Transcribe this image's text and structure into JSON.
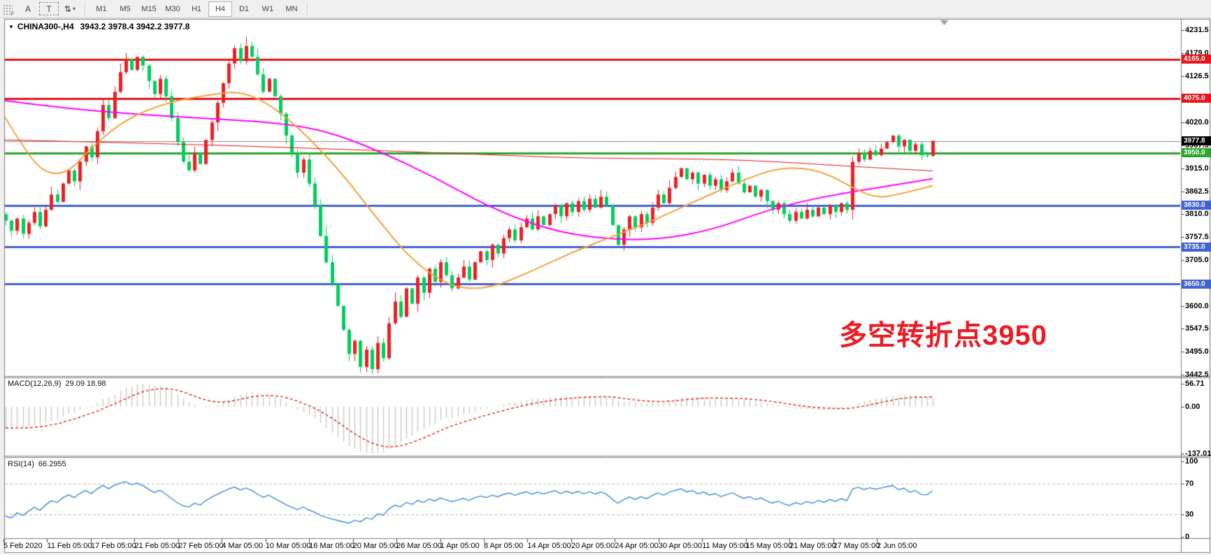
{
  "toolbar": {
    "button_a": "A",
    "button_t": "T",
    "cursor_glyph": "⇅",
    "cursor_caret": "▾",
    "timeframes": [
      "M1",
      "M5",
      "M15",
      "M30",
      "H1",
      "H4",
      "D1",
      "W1",
      "MN"
    ],
    "active_timeframe": "H4"
  },
  "chart": {
    "symbol_title": "CHINA300-,H4",
    "ohlc_text": "3943.2 3978.4 3942.2 3977.8",
    "dropdown_glyph": "▼",
    "annotation": {
      "text": "多空转折点3950",
      "color": "#ea1c24"
    },
    "price_ticks": [
      4231.5,
      4179.0,
      4126.5,
      4072.5,
      4020.0,
      3967.5,
      3915.0,
      3862.5,
      3810.0,
      3757.5,
      3705.0,
      3652.5,
      3600.0,
      3547.5,
      3495.0,
      3442.5
    ],
    "price_line_labels": [
      {
        "text": "4165.0",
        "price": 4165.0,
        "bg": "#e8151c"
      },
      {
        "text": "4075.0",
        "price": 4075.0,
        "bg": "#e8151c"
      },
      {
        "text": "3977.8",
        "price": 3977.8,
        "bg": "#000000"
      },
      {
        "text": "3950.0",
        "price": 3950.0,
        "bg": "#2ca52c"
      },
      {
        "text": "3830.0",
        "price": 3830.0,
        "bg": "#4263cf"
      },
      {
        "text": "3735.0",
        "price": 3735.0,
        "bg": "#4263cf"
      },
      {
        "text": "3650.0",
        "price": 3650.0,
        "bg": "#4263cf"
      }
    ],
    "date_labels": [
      "5 Feb 2020",
      "11 Feb 05:00",
      "17 Feb 05:00",
      "21 Feb 05:00",
      "27 Feb 05:00",
      "4 Mar 05:00",
      "10 Mar 05:00",
      "16 Mar 05:00",
      "20 Mar 05:00",
      "26 Mar 05:00",
      "1 Apr 05:00",
      "8 Apr 05:00",
      "14 Apr 05:00",
      "20 Apr 05:00",
      "24 Apr 05:00",
      "30 Apr 05:00",
      "11 May 05:00",
      "15 May 05:00",
      "21 May 05:00",
      "27 May 05:00",
      "2 Jun 05:00"
    ]
  },
  "chart_data": {
    "type": "candlestick",
    "symbol": "CHINA300-",
    "timeframe": "H4",
    "title": "CHINA300-,H4",
    "ylim": [
      3442.5,
      4231.5
    ],
    "last_candle": {
      "open": 3943.2,
      "high": 3978.4,
      "low": 3942.2,
      "close": 3977.8
    },
    "up_color": "#ed2024",
    "down_color": "#00cf5d",
    "hlines": [
      {
        "price": 4165.0,
        "color": "#e8151c",
        "width": 3
      },
      {
        "price": 4075.0,
        "color": "#e8151c",
        "width": 3
      },
      {
        "price": 3950.0,
        "color": "#2ca52c",
        "width": 3
      },
      {
        "price": 3830.0,
        "color": "#4263cf",
        "width": 3
      },
      {
        "price": 3735.0,
        "color": "#4263cf",
        "width": 3
      },
      {
        "price": 3650.0,
        "color": "#4263cf",
        "width": 3
      },
      {
        "price": 3977.8,
        "color": "#8a8a8a",
        "width": 1
      }
    ],
    "warmup_closes": [
      4150,
      4135,
      4160,
      4140,
      4120,
      4135,
      4110,
      4090,
      4105,
      4080,
      4060,
      4075,
      4050,
      4030,
      4045,
      4015,
      3990,
      4005,
      3975,
      3950,
      3965,
      3935,
      3905,
      3920,
      3890,
      3860,
      3875,
      3845,
      3815,
      3830,
      3800,
      3780,
      3795,
      3810
    ],
    "closes": [
      3795,
      3772,
      3800,
      3765,
      3790,
      3815,
      3782,
      3820,
      3855,
      3838,
      3880,
      3910,
      3885,
      3930,
      3965,
      3940,
      4000,
      4060,
      4030,
      4090,
      4135,
      4165,
      4140,
      4170,
      4150,
      4115,
      4085,
      4120,
      4080,
      4030,
      3975,
      3930,
      3910,
      3950,
      3925,
      3980,
      4020,
      4065,
      4110,
      4155,
      4190,
      4160,
      4195,
      4170,
      4130,
      4090,
      4120,
      4080,
      4040,
      3990,
      3950,
      3905,
      3935,
      3880,
      3830,
      3760,
      3700,
      3650,
      3600,
      3545,
      3490,
      3520,
      3460,
      3500,
      3455,
      3515,
      3480,
      3560,
      3610,
      3575,
      3640,
      3605,
      3665,
      3630,
      3685,
      3655,
      3700,
      3670,
      3640,
      3665,
      3690,
      3660,
      3700,
      3725,
      3705,
      3740,
      3720,
      3755,
      3775,
      3750,
      3780,
      3800,
      3775,
      3805,
      3785,
      3810,
      3830,
      3805,
      3835,
      3815,
      3840,
      3820,
      3845,
      3825,
      3850,
      3830,
      3785,
      3740,
      3775,
      3805,
      3780,
      3810,
      3790,
      3825,
      3855,
      3835,
      3870,
      3895,
      3915,
      3890,
      3905,
      3880,
      3900,
      3875,
      3890,
      3865,
      3885,
      3905,
      3880,
      3860,
      3875,
      3850,
      3865,
      3840,
      3820,
      3835,
      3810,
      3795,
      3815,
      3800,
      3820,
      3805,
      3825,
      3810,
      3830,
      3815,
      3835,
      3820,
      3930,
      3950,
      3935,
      3955,
      3945,
      3960,
      3975,
      3990,
      3965,
      3980,
      3955,
      3970,
      3945,
      3943,
      3977.8
    ],
    "wick_pattern": [
      4,
      9,
      2,
      13,
      6,
      1,
      10,
      3,
      16,
      7,
      2,
      11
    ],
    "overrides": {
      "high": {
        "21": 4179,
        "42": 4216
      },
      "low": {
        "62": 3446,
        "64": 3444
      }
    },
    "ma_lines": [
      {
        "name": "slow-ma-magenta",
        "color": "#ff00ff",
        "width": 2,
        "points": [
          [
            7,
            4070
          ],
          [
            90,
            4053
          ],
          [
            200,
            4038
          ],
          [
            300,
            4029
          ],
          [
            400,
            4019
          ],
          [
            470,
            3999
          ],
          [
            540,
            3956
          ],
          [
            620,
            3896
          ],
          [
            700,
            3826
          ],
          [
            780,
            3776
          ],
          [
            860,
            3753
          ],
          [
            940,
            3751
          ],
          [
            1020,
            3774
          ],
          [
            1100,
            3821
          ],
          [
            1180,
            3851
          ],
          [
            1260,
            3872
          ],
          [
            1334,
            3891
          ]
        ]
      },
      {
        "name": "mid-ma-orange",
        "color": "#f2a33c",
        "width": 2,
        "points": [
          [
            7,
            4032
          ],
          [
            30,
            3972
          ],
          [
            60,
            3906
          ],
          [
            95,
            3901
          ],
          [
            130,
            3962
          ],
          [
            180,
            4028
          ],
          [
            240,
            4066
          ],
          [
            300,
            4084
          ],
          [
            345,
            4092
          ],
          [
            390,
            4058
          ],
          [
            440,
            3988
          ],
          [
            490,
            3902
          ],
          [
            540,
            3798
          ],
          [
            590,
            3703
          ],
          [
            645,
            3642
          ],
          [
            700,
            3639
          ],
          [
            760,
            3679
          ],
          [
            820,
            3724
          ],
          [
            880,
            3761
          ],
          [
            940,
            3799
          ],
          [
            1000,
            3844
          ],
          [
            1060,
            3886
          ],
          [
            1110,
            3915
          ],
          [
            1150,
            3916
          ],
          [
            1185,
            3901
          ],
          [
            1215,
            3874
          ],
          [
            1253,
            3846
          ],
          [
            1290,
            3857
          ],
          [
            1334,
            3875
          ]
        ]
      },
      {
        "name": "long-ma-red",
        "color": "#e01515",
        "width": 1,
        "points": [
          [
            7,
            3980
          ],
          [
            250,
            3971
          ],
          [
            500,
            3958
          ],
          [
            700,
            3946
          ],
          [
            830,
            3938
          ],
          [
            1050,
            3936
          ],
          [
            1200,
            3921
          ],
          [
            1334,
            3909
          ]
        ]
      }
    ]
  },
  "macd": {
    "label": "MACD(12,26,9)",
    "values_text": "29.09 18.98",
    "value_main": 29.09,
    "value_signal": 18.98,
    "axis_labels": [
      "56.71",
      "0.00",
      "-137.01"
    ],
    "histogram_color": "#c9c9c9",
    "signal_color": "#e02020",
    "params": [
      12,
      26,
      9
    ]
  },
  "rsi": {
    "label": "RSI(14)",
    "value_text": "66.2955",
    "value": 66.2955,
    "period": 14,
    "axis_labels": [
      "100",
      "70",
      "30",
      "0"
    ],
    "axis_values": [
      100,
      70,
      30,
      0
    ],
    "levels": [
      70,
      30
    ],
    "line_color": "#3d89d9",
    "level_color": "#bdbdbd"
  }
}
